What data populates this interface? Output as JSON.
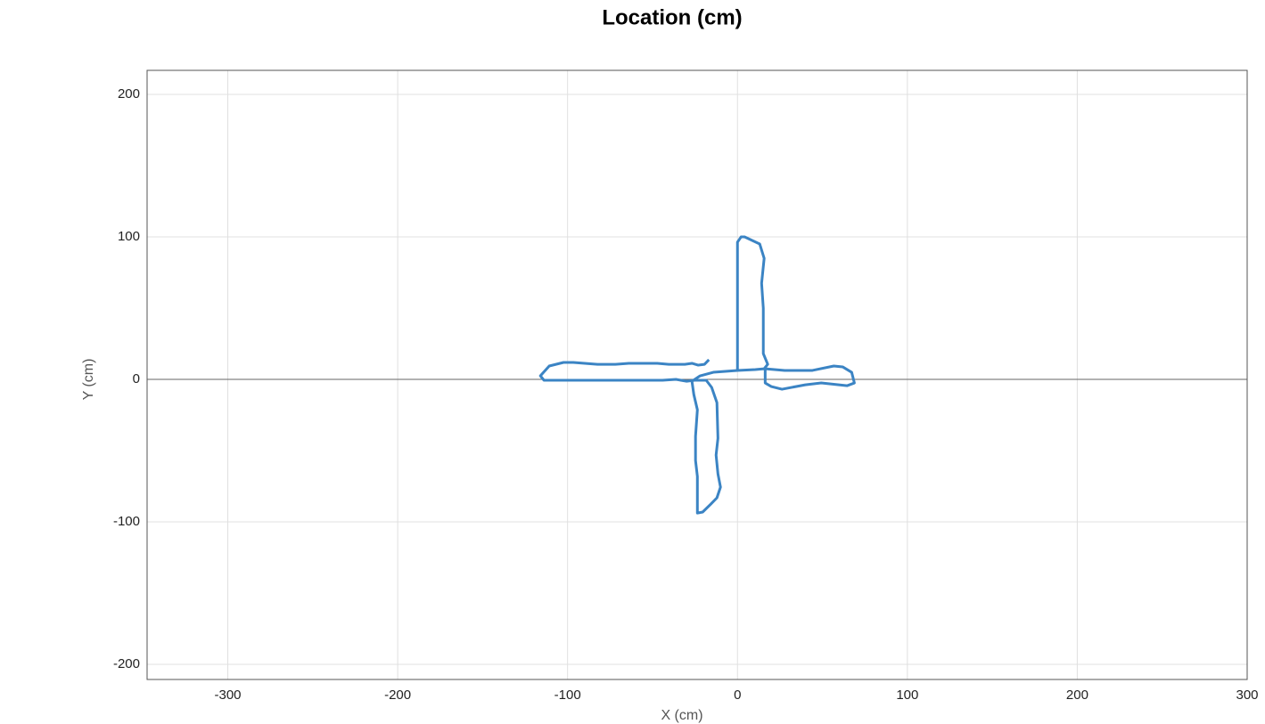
{
  "chart_data": {
    "type": "line",
    "title": "Location (cm)",
    "x_label": "X (cm)",
    "y_label": "Y (cm)",
    "xlim": [
      -347.5,
      300
    ],
    "xticks": [
      -300,
      -200,
      -100,
      0,
      100,
      200,
      300
    ],
    "ylim": [
      -210.6,
      216.9
    ],
    "yticks": [
      -200,
      -100,
      0,
      100,
      200
    ],
    "grid": true,
    "series": [
      {
        "color": "#3b84c4",
        "x": [
          0,
          0,
          2.1,
          4.2,
          13.1,
          15.7,
          14.2,
          15.2,
          15.2,
          17.8,
          15.7,
          27.8,
          44.1,
          56.7,
          61.9,
          67.2,
          68.8,
          64.6,
          49.3,
          39.9,
          26.2,
          19.9,
          16.3,
          16.3,
          10.5,
          0,
          -14.2,
          -22.0,
          -26.8,
          -25.7,
          -23.6,
          -24.7,
          -24.7,
          -23.6,
          -23.6,
          -20.5,
          -15.7,
          -12.1,
          -10.0,
          -11.5,
          -12.6,
          -11.5,
          -12.1,
          -15.2,
          -18.4,
          -25.2,
          -29.9,
          -36.2,
          -44.1,
          -113.9,
          -116.0,
          -110.8,
          -102.4,
          -96.6,
          -82.4,
          -71.9,
          -64.0,
          -47.2,
          -40.4,
          -31.0,
          -26.8,
          -23.1,
          -19.4,
          -16.8
        ],
        "values": [
          6.3,
          96.3,
          100,
          100,
          95,
          85,
          67.5,
          50,
          18.1,
          10.6,
          7.5,
          6.3,
          6.3,
          9.4,
          8.8,
          5,
          -2.5,
          -4.4,
          -2.5,
          -3.8,
          -6.9,
          -5,
          -2.5,
          7.5,
          6.9,
          6.3,
          5,
          2.5,
          -1.3,
          -10.6,
          -21.3,
          -40,
          -56.9,
          -68.1,
          -93.8,
          -93.1,
          -87.5,
          -83.1,
          -75.6,
          -66.3,
          -53.1,
          -41.3,
          -16.3,
          -5.6,
          -0.6,
          -0.6,
          -1.3,
          0,
          -0.6,
          -0.6,
          2.5,
          9.4,
          11.9,
          11.9,
          10.6,
          10.6,
          11.3,
          11.3,
          10.6,
          10.6,
          11.3,
          10,
          10.6,
          13.8
        ]
      }
    ]
  }
}
